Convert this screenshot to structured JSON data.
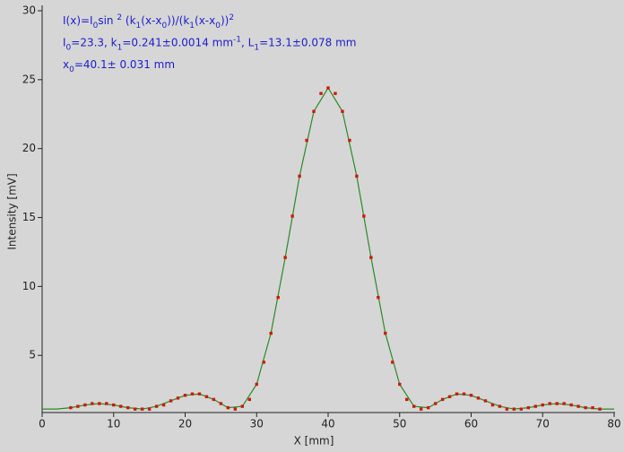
{
  "chart_data": {
    "type": "scatter",
    "xlabel": "X [mm]",
    "ylabel": "Intensity [mV]",
    "annotations": [
      [
        {
          "text": "I(x)=I"
        },
        {
          "text": "0",
          "shift": "sub"
        },
        {
          "text": "sin "
        },
        {
          "text": "2",
          "shift": "sup"
        },
        {
          "text": " (k"
        },
        {
          "text": "1",
          "shift": "sub"
        },
        {
          "text": "(x-x"
        },
        {
          "text": "0",
          "shift": "sub"
        },
        {
          "text": "))/(k"
        },
        {
          "text": "1",
          "shift": "sub"
        },
        {
          "text": "(x-x"
        },
        {
          "text": "0",
          "shift": "sub"
        },
        {
          "text": "))"
        },
        {
          "text": "2",
          "shift": "sup"
        }
      ],
      [
        {
          "text": "I"
        },
        {
          "text": "0",
          "shift": "sub"
        },
        {
          "text": "=23.3,  k"
        },
        {
          "text": "1",
          "shift": "sub"
        },
        {
          "text": "=0.241±0.0014 mm"
        },
        {
          "text": "-1",
          "shift": "sup"
        },
        {
          "text": ",   L"
        },
        {
          "text": "1",
          "shift": "sub"
        },
        {
          "text": "=13.1±0.078 mm"
        }
      ],
      [
        {
          "text": "x"
        },
        {
          "text": "0",
          "shift": "sub"
        },
        {
          "text": "=40.1±  0.031 mm"
        }
      ]
    ],
    "xlim": [
      0,
      80
    ],
    "xticks": [
      0,
      10,
      20,
      30,
      40,
      50,
      60,
      70,
      80
    ],
    "ylim": [
      0.85,
      30
    ],
    "yticks": [
      5,
      10,
      15,
      20,
      25,
      30
    ],
    "series": [
      {
        "style": "line",
        "color": "#2a8a2a",
        "x": [
          0,
          2,
          4,
          6,
          8,
          10,
          12,
          14,
          16,
          18,
          20,
          22,
          24,
          26,
          28,
          30,
          32,
          34,
          36,
          38,
          40,
          42,
          44,
          46,
          48,
          50,
          52,
          54,
          56,
          58,
          60,
          62,
          64,
          66,
          68,
          70,
          72,
          74,
          76,
          78,
          80
        ],
        "values": [
          1.1,
          1.1,
          1.2,
          1.4,
          1.5,
          1.4,
          1.2,
          1.1,
          1.3,
          1.7,
          2.1,
          2.2,
          1.8,
          1.2,
          1.3,
          2.9,
          6.6,
          12.1,
          18.0,
          22.7,
          24.4,
          22.7,
          18.0,
          12.1,
          6.6,
          2.9,
          1.3,
          1.2,
          1.8,
          2.2,
          2.1,
          1.7,
          1.3,
          1.1,
          1.2,
          1.4,
          1.5,
          1.4,
          1.2,
          1.1,
          1.1
        ]
      },
      {
        "style": "points",
        "color": "#cc1a00",
        "x": [
          4,
          5,
          6,
          7,
          8,
          9,
          10,
          11,
          12,
          13,
          14,
          15,
          16,
          17,
          18,
          19,
          20,
          21,
          22,
          23,
          24,
          25,
          26,
          27,
          28,
          29,
          30,
          31,
          32,
          33,
          34,
          35,
          36,
          37,
          38,
          39,
          40,
          41,
          42,
          43,
          44,
          45,
          46,
          47,
          48,
          49,
          50,
          51,
          52,
          53,
          54,
          55,
          56,
          57,
          58,
          59,
          60,
          61,
          62,
          63,
          64,
          65,
          66,
          67,
          68,
          69,
          70,
          71,
          72,
          73,
          74,
          75,
          76,
          77,
          78
        ],
        "values": [
          1.2,
          1.3,
          1.4,
          1.5,
          1.5,
          1.5,
          1.4,
          1.3,
          1.2,
          1.1,
          1.1,
          1.1,
          1.3,
          1.4,
          1.7,
          1.9,
          2.1,
          2.2,
          2.2,
          2.0,
          1.8,
          1.5,
          1.2,
          1.1,
          1.3,
          1.8,
          2.9,
          4.5,
          6.6,
          9.2,
          12.1,
          15.1,
          18.0,
          20.6,
          22.7,
          24.0,
          24.4,
          24.0,
          22.7,
          20.6,
          18.0,
          15.1,
          12.1,
          9.2,
          6.6,
          4.5,
          2.9,
          1.8,
          1.3,
          1.1,
          1.2,
          1.5,
          1.8,
          2.0,
          2.2,
          2.2,
          2.1,
          1.9,
          1.7,
          1.4,
          1.3,
          1.1,
          1.1,
          1.1,
          1.2,
          1.3,
          1.4,
          1.5,
          1.5,
          1.5,
          1.4,
          1.3,
          1.2,
          1.2,
          1.1
        ]
      }
    ]
  }
}
